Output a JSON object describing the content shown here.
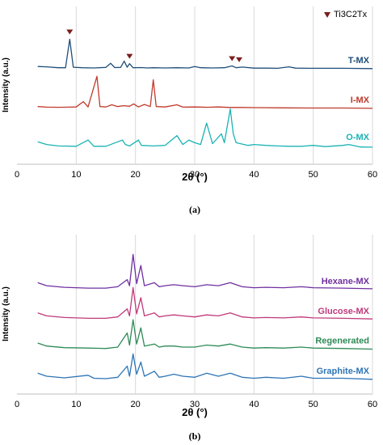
{
  "chart_data": [
    {
      "type": "line",
      "caption": "(a)",
      "xlabel": "2θ (°)",
      "ylabel": "Intensity (a.u.)",
      "xlim": [
        0,
        60
      ],
      "x_ticks": [
        "0",
        "10",
        "20",
        "30",
        "40",
        "50",
        "60"
      ],
      "grid": "vertical",
      "legend": {
        "label": "Ti3C2Tx",
        "marker": "down-triangle",
        "position": "top-right",
        "color": "#7B1E1E"
      },
      "marker_positions": [
        8.9,
        19.0,
        36.3,
        37.5
      ],
      "series": [
        {
          "name": "T-MX",
          "color": "#1F4E79",
          "offset": 2.0,
          "points": [
            [
              3.5,
              0.12
            ],
            [
              5,
              0.1
            ],
            [
              7,
              0.05
            ],
            [
              8.2,
              0.05
            ],
            [
              8.9,
              1.65
            ],
            [
              9.5,
              0.08
            ],
            [
              11,
              0.05
            ],
            [
              13,
              0.04
            ],
            [
              15,
              0.07
            ],
            [
              15.8,
              0.3
            ],
            [
              16.5,
              0.06
            ],
            [
              17.5,
              0.07
            ],
            [
              18.1,
              0.42
            ],
            [
              18.6,
              0.08
            ],
            [
              19.0,
              0.28
            ],
            [
              19.6,
              0.05
            ],
            [
              21,
              0.06
            ],
            [
              22,
              0.04
            ],
            [
              23,
              0.05
            ],
            [
              25,
              0.04
            ],
            [
              27,
              0.05
            ],
            [
              29,
              0.04
            ],
            [
              30,
              0.12
            ],
            [
              31,
              0.05
            ],
            [
              33,
              0.04
            ],
            [
              35,
              0.05
            ],
            [
              36.3,
              0.15
            ],
            [
              37,
              0.05
            ],
            [
              38,
              0.09
            ],
            [
              40,
              0.03
            ],
            [
              42,
              0.03
            ],
            [
              44,
              0.02
            ],
            [
              45.9,
              0.1
            ],
            [
              47,
              0.03
            ],
            [
              50,
              0.02
            ],
            [
              52,
              0.02
            ],
            [
              55,
              0.02
            ],
            [
              60,
              0.0
            ]
          ]
        },
        {
          "name": "I-MX",
          "color": "#C0392B",
          "offset": 1.0,
          "points": [
            [
              3.5,
              0.1
            ],
            [
              5,
              0.07
            ],
            [
              7,
              0.06
            ],
            [
              9,
              0.07
            ],
            [
              10,
              0.08
            ],
            [
              11.2,
              0.38
            ],
            [
              12,
              0.08
            ],
            [
              13.5,
              1.8
            ],
            [
              14,
              0.1
            ],
            [
              15,
              0.08
            ],
            [
              16,
              0.2
            ],
            [
              17,
              0.1
            ],
            [
              18,
              0.15
            ],
            [
              19,
              0.12
            ],
            [
              19.7,
              0.25
            ],
            [
              20.5,
              0.08
            ],
            [
              21.5,
              0.22
            ],
            [
              22.5,
              0.1
            ],
            [
              23.0,
              1.6
            ],
            [
              23.5,
              0.1
            ],
            [
              25,
              0.08
            ],
            [
              27,
              0.2
            ],
            [
              28,
              0.07
            ],
            [
              30,
              0.08
            ],
            [
              32,
              0.06
            ],
            [
              34,
              0.08
            ],
            [
              36,
              0.05
            ],
            [
              38,
              0.05
            ],
            [
              40,
              0.04
            ],
            [
              45,
              0.03
            ],
            [
              50,
              0.02
            ],
            [
              55,
              0.02
            ],
            [
              60,
              0.0
            ]
          ]
        },
        {
          "name": "O-MX",
          "color": "#1BB3B3",
          "offset": 0.0,
          "points": [
            [
              3.5,
              0.35
            ],
            [
              5,
              0.2
            ],
            [
              7,
              0.12
            ],
            [
              10,
              0.1
            ],
            [
              12,
              0.45
            ],
            [
              13,
              0.1
            ],
            [
              15,
              0.1
            ],
            [
              17,
              0.35
            ],
            [
              17.8,
              0.45
            ],
            [
              18.3,
              0.2
            ],
            [
              19,
              0.12
            ],
            [
              20.5,
              0.45
            ],
            [
              21,
              0.15
            ],
            [
              23,
              0.12
            ],
            [
              25,
              0.15
            ],
            [
              27,
              0.7
            ],
            [
              28,
              0.2
            ],
            [
              29,
              0.45
            ],
            [
              30,
              0.3
            ],
            [
              31,
              0.2
            ],
            [
              32,
              1.4
            ],
            [
              33,
              0.25
            ],
            [
              34.5,
              0.8
            ],
            [
              35,
              0.3
            ],
            [
              36,
              2.2
            ],
            [
              36.5,
              0.8
            ],
            [
              37,
              0.3
            ],
            [
              39,
              0.15
            ],
            [
              40,
              0.2
            ],
            [
              42,
              0.15
            ],
            [
              44,
              0.12
            ],
            [
              46,
              0.1
            ],
            [
              48,
              0.1
            ],
            [
              50,
              0.15
            ],
            [
              52,
              0.08
            ],
            [
              55,
              0.15
            ],
            [
              56,
              0.2
            ],
            [
              58,
              0.06
            ],
            [
              60,
              0.05
            ]
          ]
        }
      ]
    },
    {
      "type": "line",
      "caption": "(b)",
      "xlabel": "2θ (°)",
      "ylabel": "Intensity (a.u.)",
      "xlim": [
        0,
        60
      ],
      "x_ticks": [
        "0",
        "10",
        "20",
        "30",
        "40",
        "50",
        "60"
      ],
      "grid": "vertical",
      "series": [
        {
          "name": "Hexane-MX",
          "color": "#7030A0",
          "offset": 3.0,
          "points": [
            [
              3.5,
              0.35
            ],
            [
              5,
              0.2
            ],
            [
              8,
              0.12
            ],
            [
              12,
              0.08
            ],
            [
              15,
              0.08
            ],
            [
              17,
              0.15
            ],
            [
              18.6,
              0.5
            ],
            [
              19.0,
              0.2
            ],
            [
              19.6,
              1.75
            ],
            [
              20.2,
              0.3
            ],
            [
              20.9,
              1.2
            ],
            [
              21.5,
              0.2
            ],
            [
              23.2,
              0.35
            ],
            [
              24,
              0.15
            ],
            [
              25,
              0.2
            ],
            [
              26.5,
              0.25
            ],
            [
              28,
              0.2
            ],
            [
              30,
              0.15
            ],
            [
              32,
              0.25
            ],
            [
              34,
              0.2
            ],
            [
              36,
              0.35
            ],
            [
              38,
              0.15
            ],
            [
              40,
              0.1
            ],
            [
              42,
              0.12
            ],
            [
              45,
              0.1
            ],
            [
              48,
              0.15
            ],
            [
              50,
              0.1
            ],
            [
              55,
              0.08
            ],
            [
              60,
              0.05
            ]
          ]
        },
        {
          "name": "Glucose-MX",
          "color": "#C0397A",
          "offset": 2.0,
          "points": [
            [
              3.5,
              0.35
            ],
            [
              5,
              0.2
            ],
            [
              8,
              0.12
            ],
            [
              12,
              0.08
            ],
            [
              15,
              0.08
            ],
            [
              17,
              0.15
            ],
            [
              18.6,
              0.55
            ],
            [
              19.0,
              0.2
            ],
            [
              19.6,
              1.6
            ],
            [
              20.2,
              0.3
            ],
            [
              20.9,
              1.1
            ],
            [
              21.5,
              0.2
            ],
            [
              23.2,
              0.35
            ],
            [
              24,
              0.15
            ],
            [
              25,
              0.2
            ],
            [
              26.5,
              0.25
            ],
            [
              28,
              0.2
            ],
            [
              30,
              0.15
            ],
            [
              32,
              0.25
            ],
            [
              34,
              0.2
            ],
            [
              36,
              0.35
            ],
            [
              38,
              0.15
            ],
            [
              40,
              0.1
            ],
            [
              42,
              0.12
            ],
            [
              45,
              0.1
            ],
            [
              48,
              0.15
            ],
            [
              50,
              0.1
            ],
            [
              55,
              0.08
            ],
            [
              60,
              0.05
            ]
          ]
        },
        {
          "name": "Regenerated",
          "color": "#2E8B57",
          "offset": 1.0,
          "points": [
            [
              3.5,
              0.35
            ],
            [
              5,
              0.2
            ],
            [
              8,
              0.12
            ],
            [
              12,
              0.1
            ],
            [
              15,
              0.08
            ],
            [
              17,
              0.15
            ],
            [
              18.6,
              0.85
            ],
            [
              19.0,
              0.25
            ],
            [
              19.6,
              1.5
            ],
            [
              20.2,
              0.3
            ],
            [
              20.9,
              1.1
            ],
            [
              21.5,
              0.2
            ],
            [
              23.2,
              0.3
            ],
            [
              24,
              0.15
            ],
            [
              25,
              0.2
            ],
            [
              26.5,
              0.2
            ],
            [
              28,
              0.15
            ],
            [
              30,
              0.15
            ],
            [
              32,
              0.25
            ],
            [
              34,
              0.2
            ],
            [
              36,
              0.3
            ],
            [
              38,
              0.15
            ],
            [
              40,
              0.1
            ],
            [
              42,
              0.12
            ],
            [
              45,
              0.1
            ],
            [
              48,
              0.15
            ],
            [
              50,
              0.1
            ],
            [
              55,
              0.08
            ],
            [
              60,
              0.05
            ]
          ]
        },
        {
          "name": "Graphite-MX",
          "color": "#2E75B6",
          "offset": 0.0,
          "points": [
            [
              3.5,
              0.35
            ],
            [
              5,
              0.2
            ],
            [
              8,
              0.12
            ],
            [
              12,
              0.25
            ],
            [
              13,
              0.1
            ],
            [
              15,
              0.08
            ],
            [
              17,
              0.15
            ],
            [
              18.6,
              0.7
            ],
            [
              19.0,
              0.2
            ],
            [
              19.6,
              1.3
            ],
            [
              20.2,
              0.3
            ],
            [
              20.9,
              0.9
            ],
            [
              21.5,
              0.2
            ],
            [
              23.2,
              0.45
            ],
            [
              24,
              0.15
            ],
            [
              25,
              0.2
            ],
            [
              26.5,
              0.3
            ],
            [
              28,
              0.2
            ],
            [
              30,
              0.15
            ],
            [
              32,
              0.35
            ],
            [
              34,
              0.2
            ],
            [
              36,
              0.35
            ],
            [
              38,
              0.15
            ],
            [
              40,
              0.1
            ],
            [
              42,
              0.15
            ],
            [
              45,
              0.1
            ],
            [
              48,
              0.2
            ],
            [
              50,
              0.1
            ],
            [
              55,
              0.1
            ],
            [
              60,
              0.05
            ]
          ]
        }
      ]
    }
  ]
}
